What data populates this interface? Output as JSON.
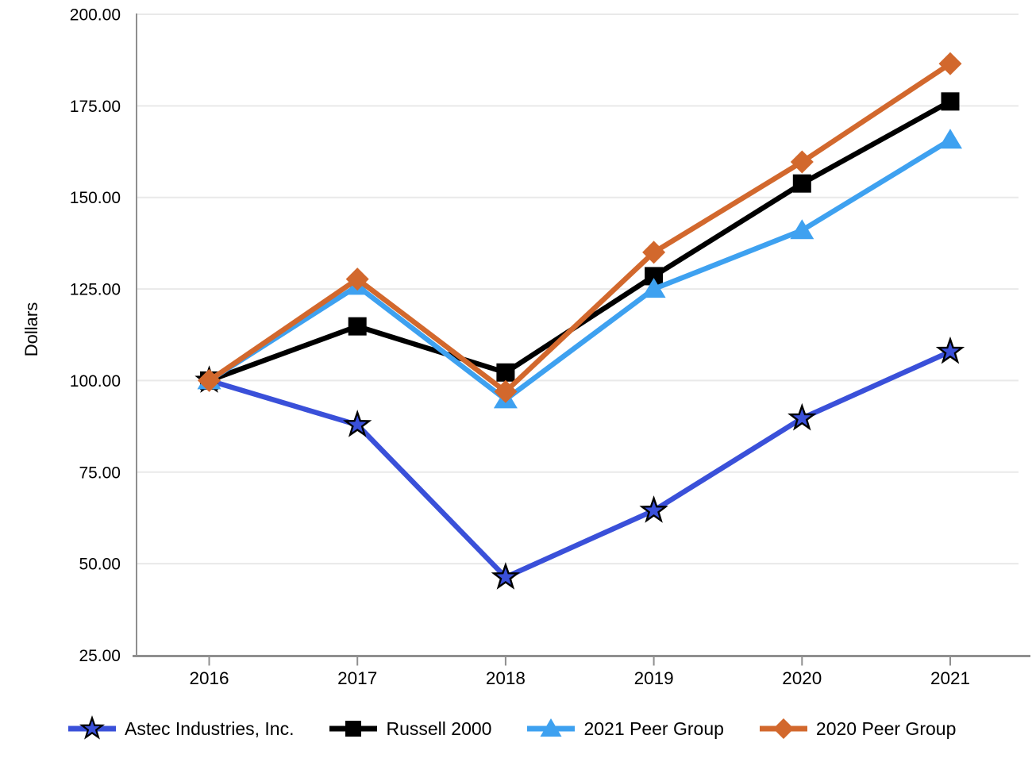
{
  "chart_data": {
    "type": "line",
    "title": "",
    "xlabel": "",
    "ylabel": "Dollars",
    "x_categories": [
      "2016",
      "2017",
      "2018",
      "2019",
      "2020",
      "2021"
    ],
    "y_ticks": [
      "25.00",
      "50.00",
      "75.00",
      "100.00",
      "125.00",
      "150.00",
      "175.00",
      "200.00"
    ],
    "ylim": [
      25,
      200
    ],
    "grid": "horizontal",
    "legend_position": "bottom",
    "series": [
      {
        "name": "Astec Industries, Inc.",
        "marker": "star",
        "color": "#3a50d9",
        "values": [
          100.0,
          87.9,
          46.3,
          64.5,
          89.7,
          107.9
        ]
      },
      {
        "name": "Russell 2000",
        "marker": "square",
        "color": "#000000",
        "values": [
          100.0,
          114.8,
          102.2,
          128.5,
          153.8,
          176.2
        ]
      },
      {
        "name": "2021 Peer Group",
        "marker": "triangle",
        "color": "#3ea1f0",
        "values": [
          100.0,
          125.8,
          94.8,
          125.0,
          141.0,
          165.7
        ]
      },
      {
        "name": "2020 Peer Group",
        "marker": "diamond",
        "color": "#d2682d",
        "values": [
          100.0,
          127.7,
          97.0,
          135.0,
          159.7,
          186.5
        ]
      }
    ],
    "colors": {
      "background": "#ffffff",
      "gridline": "#e9e9e9",
      "axis": "#8f8f8f",
      "text": "#000000"
    }
  }
}
